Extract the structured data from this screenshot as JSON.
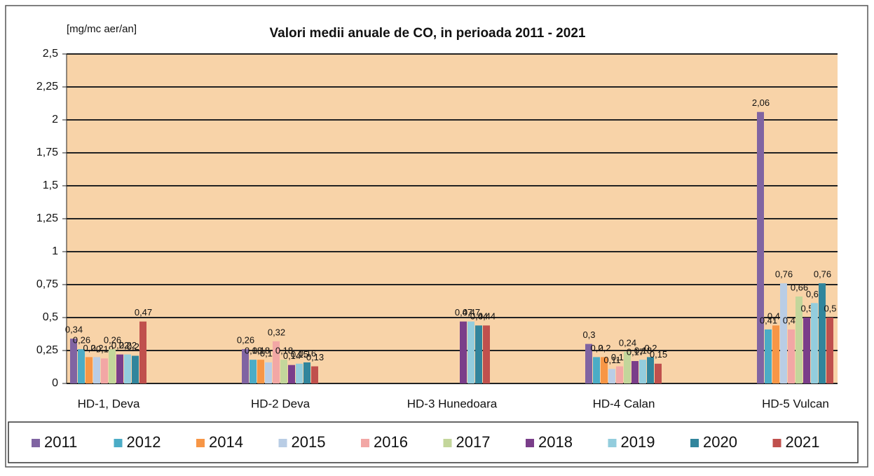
{
  "chart_data": {
    "type": "bar",
    "title": "Valori medii anuale de CO, in perioada 2011 - 2021",
    "y_label": "[mg/mc aer/an]",
    "categories": [
      "HD-1, Deva",
      "HD-2 Deva",
      "HD-3 Hunedoara",
      "HD-4 Calan",
      "HD-5 Vulcan"
    ],
    "series": [
      {
        "name": "2011",
        "color": "#8064a2",
        "values": [
          0.34,
          0.26,
          null,
          0.3,
          2.06
        ],
        "value_labels": [
          "0,34",
          "0,26",
          null,
          "0,3",
          "2,06"
        ]
      },
      {
        "name": "2012",
        "color": "#4bacc6",
        "values": [
          0.26,
          0.18,
          null,
          0.2,
          0.41
        ],
        "value_labels": [
          "0,26",
          "0,18",
          null,
          "0,2",
          "0,41"
        ]
      },
      {
        "name": "2014",
        "color": "#f79646",
        "values": [
          0.2,
          0.18,
          null,
          0.2,
          0.44
        ],
        "value_labels": [
          "0,2",
          "0,18",
          null,
          "0,2",
          "0,44"
        ]
      },
      {
        "name": "2015",
        "color": "#b9cde5",
        "values": [
          0.2,
          0.16,
          null,
          0.11,
          0.76
        ],
        "value_labels": [
          "0,2",
          "0,16",
          null,
          "0,11",
          "0,76"
        ]
      },
      {
        "name": "2016",
        "color": "#f2a7a5",
        "values": [
          0.19,
          0.32,
          null,
          0.13,
          0.41
        ],
        "value_labels": [
          "0,19",
          "0,32",
          null,
          "0,13",
          "0,41"
        ]
      },
      {
        "name": "2017",
        "color": "#c3d69b",
        "values": [
          0.26,
          0.18,
          null,
          0.24,
          0.66
        ],
        "value_labels": [
          "0,26",
          "0,18",
          null,
          "0,24",
          "0,66"
        ]
      },
      {
        "name": "2018",
        "color": "#7a3e8a",
        "values": [
          0.22,
          0.14,
          0.47,
          0.17,
          0.5
        ],
        "value_labels": [
          "0,22",
          "0,14",
          "0,47",
          "0,17",
          "0,5"
        ]
      },
      {
        "name": "2019",
        "color": "#93cddd",
        "values": [
          0.22,
          0.15,
          0.47,
          0.18,
          0.61
        ],
        "value_labels": [
          "0,22",
          "0,15",
          "0,47",
          "0,18",
          "0,61"
        ]
      },
      {
        "name": "2020",
        "color": "#31859c",
        "values": [
          0.21,
          0.16,
          0.44,
          0.2,
          0.76
        ],
        "value_labels": [
          "0,21",
          "0,16",
          "0,44",
          "0,2",
          "0,76"
        ]
      },
      {
        "name": "2021",
        "color": "#c0504d",
        "values": [
          0.47,
          0.13,
          0.44,
          0.15,
          0.5
        ],
        "value_labels": [
          "0,47",
          "0,13",
          "0,44",
          "0,15",
          "0,5"
        ]
      }
    ],
    "ylim": [
      0,
      2.5
    ],
    "yticks": [
      0,
      {
        "value": 0.25,
        "label": "0,25"
      },
      {
        "value": 0.5,
        "label": "0,5"
      },
      {
        "value": 0.75,
        "label": "0,75"
      },
      1,
      {
        "value": 1.25,
        "label": "1,25"
      },
      {
        "value": 1.5,
        "label": "1,5"
      },
      {
        "value": 1.75,
        "label": "1,75"
      },
      2,
      {
        "value": 2.25,
        "label": "2,25"
      },
      {
        "value": 2.5,
        "label": "2,5"
      }
    ],
    "grid": true,
    "legend": "bottom",
    "background": "#f8d3a8"
  }
}
